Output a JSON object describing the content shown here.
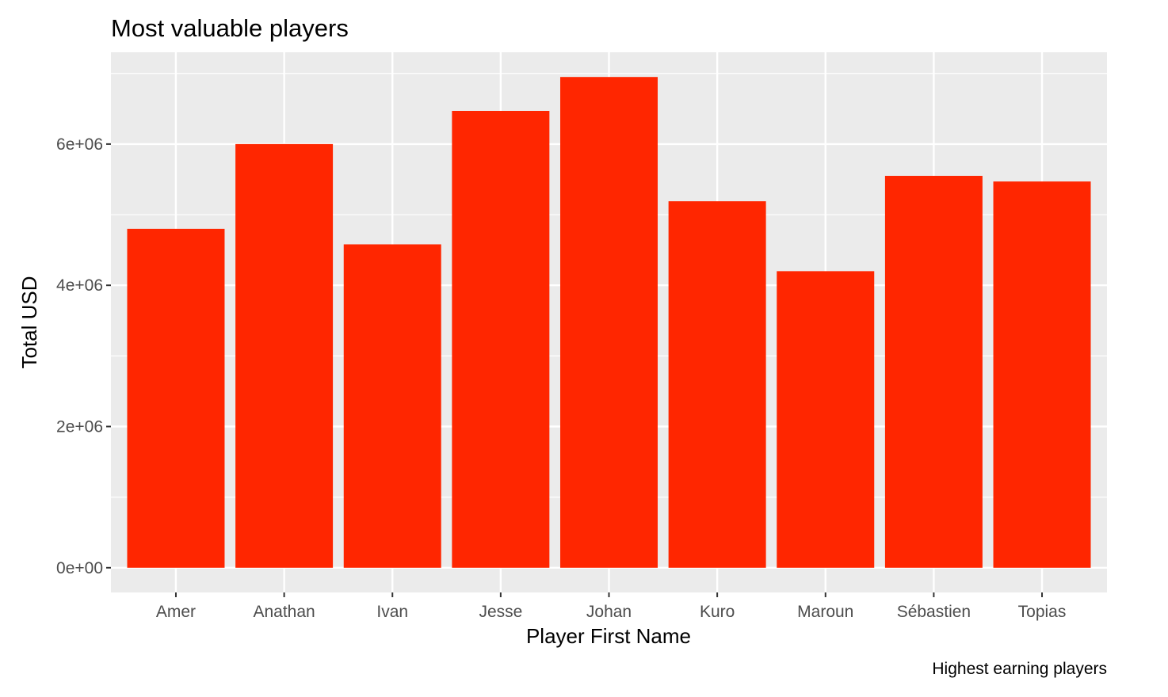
{
  "chart_data": {
    "type": "bar",
    "title": "Most valuable players",
    "caption": "Highest earning players",
    "xlabel": "Player First Name",
    "ylabel": "Total USD",
    "categories": [
      "Amer",
      "Anathan",
      "Ivan",
      "Jesse",
      "Johan",
      "Kuro",
      "Maroun",
      "Sébastien",
      "Topias"
    ],
    "values": [
      4800000,
      6000000,
      4580000,
      6470000,
      6950000,
      5190000,
      4200000,
      5550000,
      5470000
    ],
    "ylim": [
      -350000,
      7300000
    ],
    "yticks": [
      0,
      2000000,
      4000000,
      6000000
    ],
    "ytick_labels": [
      "0e+00",
      "2e+06",
      "4e+06",
      "6e+06"
    ],
    "grid": true,
    "colors": {
      "bar": "#ff2600",
      "panel": "#ebebeb",
      "grid": "#ffffff"
    }
  }
}
